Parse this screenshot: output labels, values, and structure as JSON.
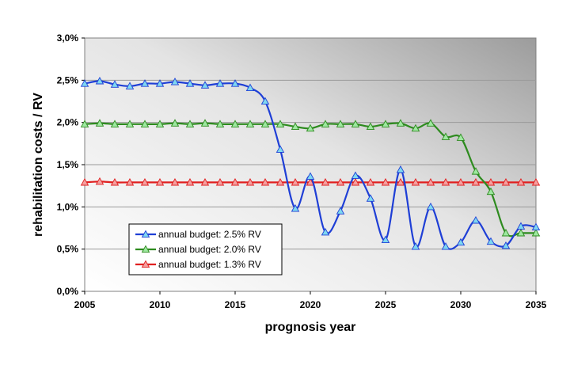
{
  "chart_data": {
    "type": "line",
    "title": "",
    "xlabel": "prognosis year",
    "ylabel": "rehabilitation costs / RV",
    "xlim": [
      2005,
      2035
    ],
    "ylim": [
      0,
      3.0
    ],
    "x_ticks": [
      2005,
      2010,
      2015,
      2020,
      2025,
      2030,
      2035
    ],
    "x_tick_labels": [
      "2005",
      "2010",
      "2015",
      "2020",
      "2025",
      "2030",
      "2035"
    ],
    "y_ticks": [
      0,
      0.5,
      1.0,
      1.5,
      2.0,
      2.5,
      3.0
    ],
    "y_tick_labels": [
      "0,0%",
      "0,5%",
      "1,0%",
      "1,5%",
      "2,0%",
      "2,5%",
      "3,0%"
    ],
    "grid": "horizontal",
    "legend_position": "bottom-left",
    "x": [
      2005,
      2006,
      2007,
      2008,
      2009,
      2010,
      2011,
      2012,
      2013,
      2014,
      2015,
      2016,
      2017,
      2018,
      2019,
      2020,
      2021,
      2022,
      2023,
      2024,
      2025,
      2026,
      2027,
      2028,
      2029,
      2030,
      2031,
      2032,
      2033,
      2034,
      2035
    ],
    "series": [
      {
        "name": "annual budget: 2.5% RV",
        "color": "#1f3fd6",
        "marker_color": "#7fd8f0",
        "values": [
          2.46,
          2.49,
          2.45,
          2.43,
          2.46,
          2.46,
          2.48,
          2.46,
          2.44,
          2.46,
          2.46,
          2.41,
          2.25,
          1.68,
          0.98,
          1.36,
          0.7,
          0.95,
          1.37,
          1.1,
          0.61,
          1.44,
          0.53,
          1.0,
          0.53,
          0.58,
          0.84,
          0.59,
          0.54,
          0.77,
          0.76
        ]
      },
      {
        "name": "annual budget: 2.0% RV",
        "color": "#2e8b1f",
        "marker_color": "#9ee8a0",
        "values": [
          1.98,
          1.99,
          1.98,
          1.98,
          1.98,
          1.98,
          1.99,
          1.98,
          1.99,
          1.98,
          1.98,
          1.98,
          1.98,
          1.98,
          1.95,
          1.93,
          1.98,
          1.98,
          1.98,
          1.95,
          1.98,
          1.99,
          1.93,
          1.99,
          1.83,
          1.82,
          1.42,
          1.18,
          0.69,
          0.69,
          0.69
        ]
      },
      {
        "name": "annual budget: 1.3% RV",
        "color": "#e02020",
        "marker_color": "#f4a0a0",
        "values": [
          1.29,
          1.3,
          1.29,
          1.29,
          1.29,
          1.29,
          1.29,
          1.29,
          1.29,
          1.29,
          1.29,
          1.29,
          1.29,
          1.29,
          1.29,
          1.29,
          1.29,
          1.29,
          1.29,
          1.29,
          1.29,
          1.29,
          1.29,
          1.29,
          1.29,
          1.29,
          1.29,
          1.29,
          1.29,
          1.29,
          1.29
        ]
      }
    ]
  }
}
